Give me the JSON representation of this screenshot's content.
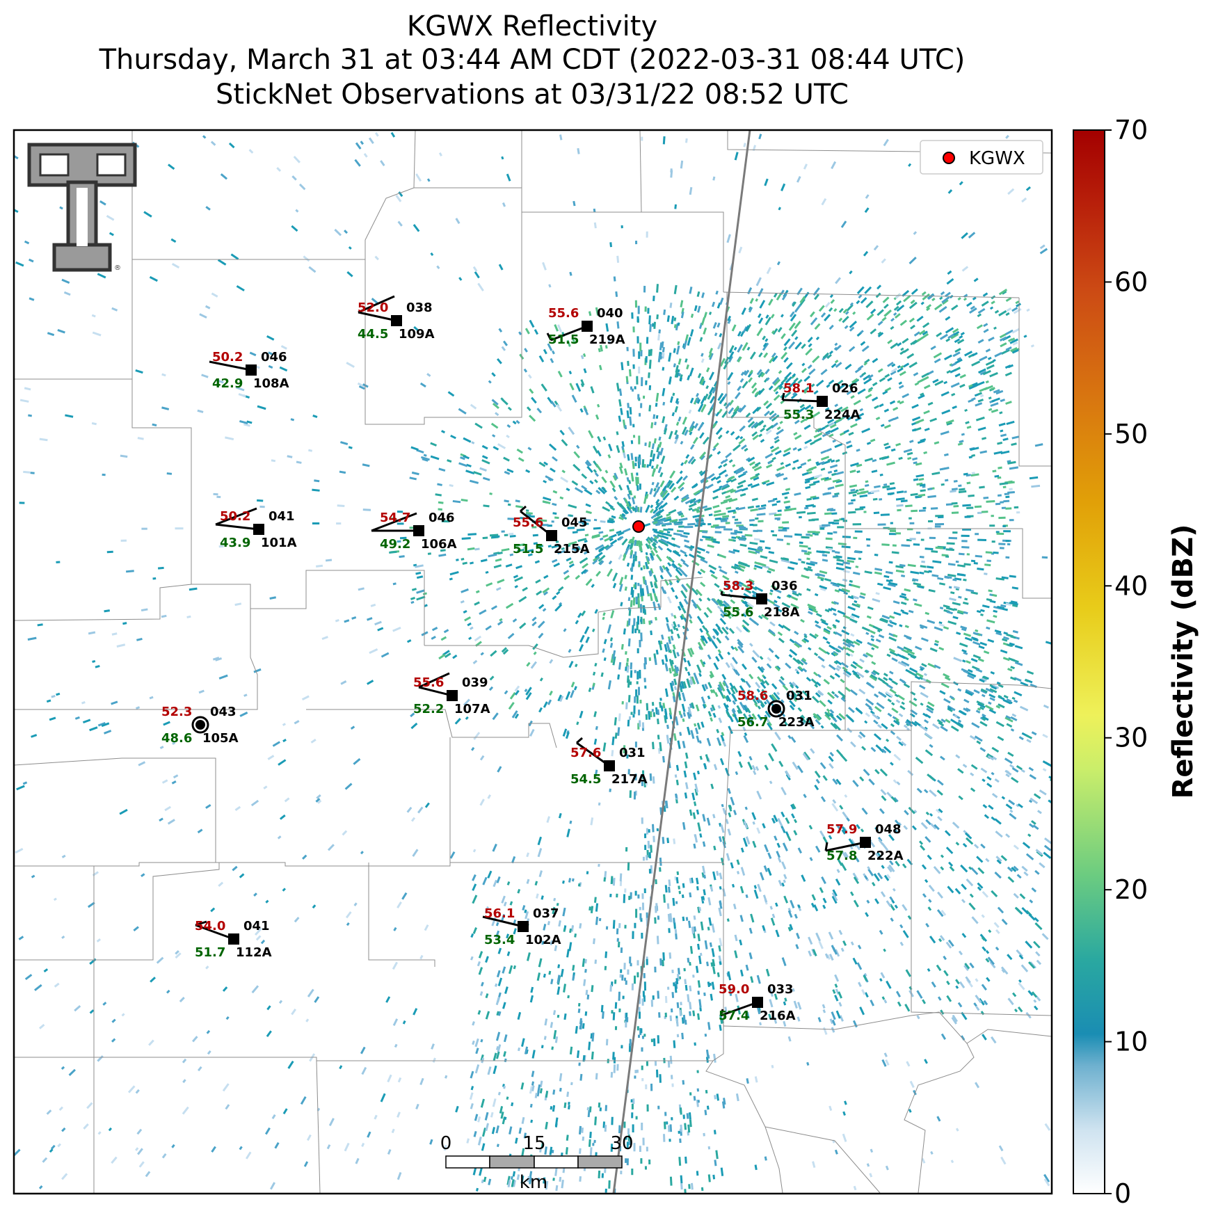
{
  "title": {
    "line1": "KGWX Reflectivity",
    "line2": "Thursday, March 31 at 03:44 AM CDT (2022-03-31 08:44 UTC)",
    "line3": "StickNet Observations at 03/31/22 08:52 UTC"
  },
  "legend": {
    "label": "KGWX",
    "marker_color": "#ff0000"
  },
  "colorbar": {
    "label": "Reflectivity (dBZ)",
    "ticks": [
      "0",
      "10",
      "20",
      "30",
      "40",
      "50",
      "60",
      "70"
    ],
    "range": [
      0,
      70
    ]
  },
  "scale_bar": {
    "ticks": [
      "0",
      "15",
      "30"
    ],
    "unit": "km"
  },
  "logo": {
    "name": "texas-tech-double-t-logo",
    "mark": "®"
  },
  "stations": [
    {
      "id": "108A",
      "temp": "50.2",
      "dew": "42.9",
      "wind_dir": "046"
    },
    {
      "id": "109A",
      "temp": "52.0",
      "dew": "44.5",
      "wind_dir": "038"
    },
    {
      "id": "219A",
      "temp": "55.6",
      "dew": "51.5",
      "wind_dir": "040"
    },
    {
      "id": "224A",
      "temp": "58.1",
      "dew": "55.3",
      "wind_dir": "026"
    },
    {
      "id": "101A",
      "temp": "50.2",
      "dew": "43.9",
      "wind_dir": "041"
    },
    {
      "id": "106A",
      "temp": "54.7",
      "dew": "49.2",
      "wind_dir": "046"
    },
    {
      "id": "215A",
      "temp": "55.6",
      "dew": "51.5",
      "wind_dir": "045"
    },
    {
      "id": "218A",
      "temp": "58.3",
      "dew": "55.6",
      "wind_dir": "036"
    },
    {
      "id": "105A",
      "temp": "52.3",
      "dew": "48.6",
      "wind_dir": "043"
    },
    {
      "id": "107A",
      "temp": "55.6",
      "dew": "52.2",
      "wind_dir": "039"
    },
    {
      "id": "223A",
      "temp": "58.6",
      "dew": "56.7",
      "wind_dir": "031"
    },
    {
      "id": "217A",
      "temp": "57.6",
      "dew": "54.5",
      "wind_dir": "031"
    },
    {
      "id": "222A",
      "temp": "57.9",
      "dew": "57.8",
      "wind_dir": "048"
    },
    {
      "id": "112A",
      "temp": "54.0",
      "dew": "51.7",
      "wind_dir": "041"
    },
    {
      "id": "102A",
      "temp": "56.1",
      "dew": "53.4",
      "wind_dir": "037"
    },
    {
      "id": "216A",
      "temp": "59.0",
      "dew": "57.4",
      "wind_dir": "033"
    }
  ],
  "colors": {
    "temp": "#b30000",
    "dew": "#006400",
    "station_id": "#000000",
    "county_lines": "#8c8c8c",
    "highway": "#7a7a7a",
    "radar_low": "#c6dff0",
    "radar_mid": "#1a9bb5",
    "radar_high": "#55c28a"
  }
}
